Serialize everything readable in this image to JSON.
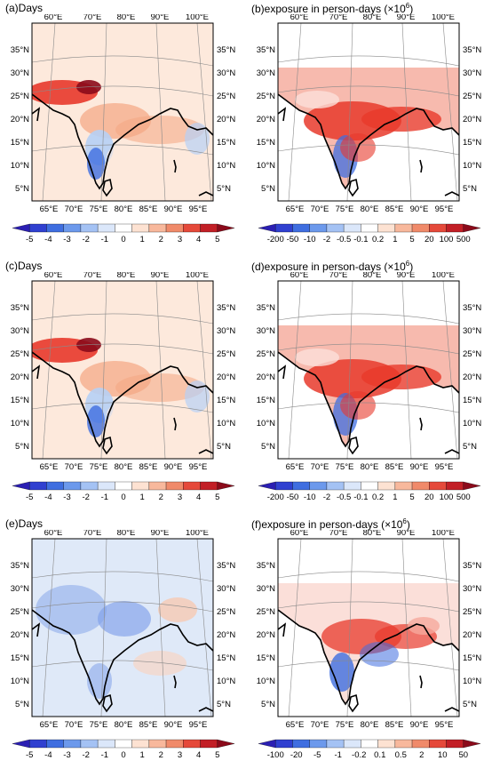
{
  "panels": [
    {
      "id": "a",
      "title": "(a)Days",
      "title_sup": "",
      "kind": "days",
      "colorbar_labels": [
        "-5",
        "-4",
        "-3",
        "-2",
        "-1",
        "0",
        "1",
        "2",
        "3",
        "4",
        "5"
      ]
    },
    {
      "id": "b",
      "title": "(b)exposure in person-days (×10",
      "title_sup": "6",
      "title_end": ")",
      "kind": "exposure",
      "colorbar_labels": [
        "-200",
        "-50",
        "-10",
        "-2",
        "-0.5",
        "-0.1",
        "0.2",
        "1",
        "5",
        "20",
        "100",
        "500"
      ]
    },
    {
      "id": "c",
      "title": "(c)Days",
      "title_sup": "",
      "kind": "days",
      "colorbar_labels": [
        "-5",
        "-4",
        "-3",
        "-2",
        "-1",
        "0",
        "1",
        "2",
        "3",
        "4",
        "5"
      ]
    },
    {
      "id": "d",
      "title": "(d)exposure in person-days (×10",
      "title_sup": "6",
      "title_end": ")",
      "kind": "exposure",
      "colorbar_labels": [
        "-200",
        "-50",
        "-10",
        "-2",
        "-0.5",
        "-0.1",
        "0.2",
        "1",
        "5",
        "20",
        "100",
        "500"
      ]
    },
    {
      "id": "e",
      "title": "(e)Days",
      "title_sup": "",
      "kind": "days-e",
      "colorbar_labels": [
        "-5",
        "-4",
        "-3",
        "-2",
        "-1",
        "0",
        "1",
        "2",
        "3",
        "4",
        "5"
      ]
    },
    {
      "id": "f",
      "title": "(f)exposure in person-days (×10",
      "title_sup": "6",
      "title_end": ")",
      "kind": "exposure-f",
      "colorbar_labels": [
        "-100",
        "-20",
        "-5",
        "-1",
        "-0.2",
        "0.1",
        "0.5",
        "2",
        "10",
        "50"
      ]
    }
  ],
  "axes": {
    "top_lon": [
      "60°E",
      "70°E",
      "80°E",
      "90°E",
      "100°E"
    ],
    "bottom_lon": [
      "65°E",
      "70°E",
      "75°E",
      "80°E",
      "85°E",
      "90°E",
      "95°E"
    ],
    "lat": [
      "35°N",
      "30°N",
      "25°N",
      "20°N",
      "15°N",
      "10°N",
      "5°N"
    ]
  },
  "colors": {
    "blue_dark": "#2b1fb3",
    "blue": "#3f6ee0",
    "blue_light": "#b6d0f5",
    "white": "#ffffff",
    "cream": "#fde9dc",
    "orange": "#f4a582",
    "red": "#e8392b",
    "red_dark": "#8b0a1a"
  }
}
